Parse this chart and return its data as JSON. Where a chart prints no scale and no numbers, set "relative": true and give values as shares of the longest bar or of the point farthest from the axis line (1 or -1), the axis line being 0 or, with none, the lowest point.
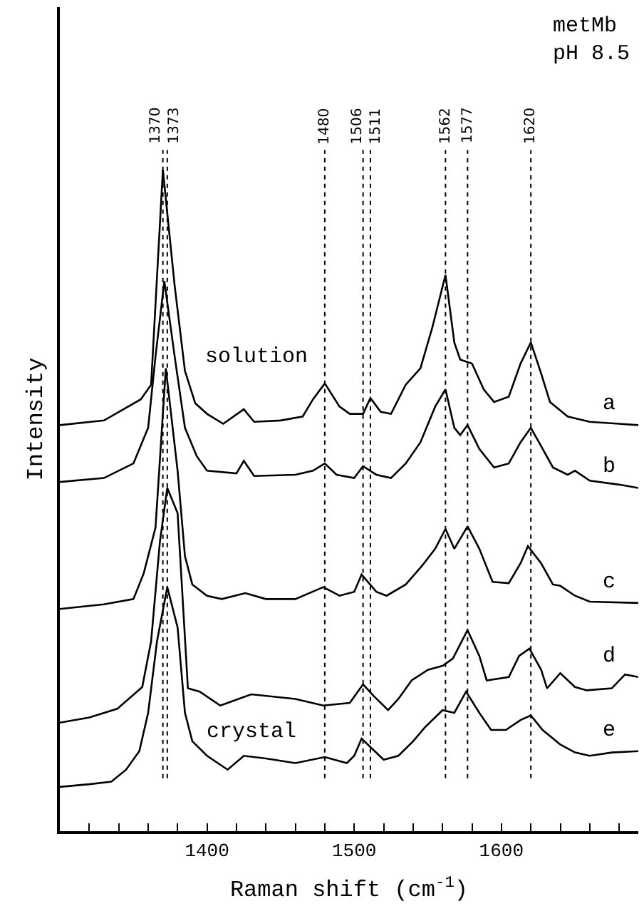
{
  "chart_data": {
    "type": "line",
    "relative": true,
    "xlabel": "Raman shift (cm$^{-1}$)",
    "ylabel": "Intensity",
    "xlim": [
      1300,
      1693
    ],
    "xticks": [
      {
        "value": 1320,
        "label": null
      },
      {
        "value": 1340,
        "label": null
      },
      {
        "value": 1360,
        "label": null
      },
      {
        "value": 1380,
        "label": null
      },
      1400,
      {
        "value": 1420,
        "label": null
      },
      {
        "value": 1440,
        "label": null
      },
      {
        "value": 1460,
        "label": null
      },
      {
        "value": 1480,
        "label": null
      },
      1500,
      {
        "value": 1520,
        "label": null
      },
      {
        "value": 1540,
        "label": null
      },
      {
        "value": 1560,
        "label": null
      },
      {
        "value": 1580,
        "label": null
      },
      1600,
      {
        "value": 1620,
        "label": null
      },
      {
        "value": 1640,
        "label": null
      },
      {
        "value": 1660,
        "label": null
      },
      {
        "value": 1680,
        "label": null
      }
    ],
    "tick_labels": "x",
    "legend": false,
    "marker": "none",
    "line_style": "solid",
    "series": [
      {
        "name": "a",
        "color": "#000000",
        "x": [
          1300,
          1330,
          1355,
          1362,
          1370,
          1378,
          1385,
          1392,
          1400,
          1411,
          1425,
          1432,
          1450,
          1465,
          1472,
          1480,
          1490,
          1497,
          1506,
          1511,
          1518,
          1525,
          1535,
          1545,
          1553,
          1562,
          1568,
          1572,
          1580,
          1588,
          1595,
          1605,
          1613,
          1620,
          1627,
          1633,
          1645,
          1660,
          1680,
          1693
        ],
        "values": [
          0.614,
          0.621,
          0.653,
          0.675,
          1,
          0.825,
          0.696,
          0.647,
          0.631,
          0.616,
          0.638,
          0.619,
          0.621,
          0.627,
          0.653,
          0.677,
          0.642,
          0.631,
          0.631,
          0.655,
          0.634,
          0.631,
          0.675,
          0.7,
          0.761,
          0.841,
          0.739,
          0.713,
          0.707,
          0.668,
          0.649,
          0.657,
          0.707,
          0.739,
          0.692,
          0.649,
          0.627,
          0.619,
          0.616,
          0.614
        ]
      },
      {
        "name": "b",
        "color": "#000000",
        "x": [
          1300,
          1330,
          1350,
          1360,
          1365,
          1371,
          1378,
          1385,
          1393,
          1400,
          1420,
          1425,
          1432,
          1460,
          1472,
          1480,
          1488,
          1500,
          1506,
          1515,
          1525,
          1535,
          1545,
          1555,
          1562,
          1568,
          1572,
          1577,
          1585,
          1595,
          1605,
          1613,
          1620,
          1628,
          1635,
          1645,
          1650,
          1660,
          1680,
          1693
        ],
        "values": [
          0.528,
          0.534,
          0.556,
          0.61,
          0.718,
          0.832,
          0.718,
          0.61,
          0.567,
          0.545,
          0.541,
          0.56,
          0.537,
          0.539,
          0.545,
          0.556,
          0.539,
          0.534,
          0.552,
          0.539,
          0.534,
          0.556,
          0.588,
          0.642,
          0.668,
          0.61,
          0.599,
          0.614,
          0.578,
          0.55,
          0.556,
          0.588,
          0.61,
          0.578,
          0.55,
          0.539,
          0.545,
          0.53,
          0.524,
          0.519
        ]
      },
      {
        "name": "c",
        "color": "#000000",
        "x": [
          1300,
          1330,
          1350,
          1357,
          1365,
          1372,
          1380,
          1385,
          1390,
          1400,
          1410,
          1426,
          1440,
          1460,
          1479,
          1490,
          1500,
          1505,
          1515,
          1522,
          1535,
          1546,
          1555,
          1562,
          1568,
          1577,
          1585,
          1594,
          1605,
          1613,
          1618,
          1627,
          1635,
          1640,
          1650,
          1660,
          1693
        ],
        "values": [
          0.336,
          0.343,
          0.351,
          0.39,
          0.459,
          0.7,
          0.545,
          0.416,
          0.373,
          0.356,
          0.351,
          0.36,
          0.351,
          0.351,
          0.369,
          0.356,
          0.362,
          0.388,
          0.362,
          0.356,
          0.373,
          0.401,
          0.427,
          0.457,
          0.427,
          0.461,
          0.427,
          0.377,
          0.375,
          0.405,
          0.431,
          0.405,
          0.373,
          0.371,
          0.356,
          0.347,
          0.345
        ]
      },
      {
        "name": "d",
        "color": "#000000",
        "x": [
          1300,
          1320,
          1339,
          1356,
          1362,
          1368,
          1373,
          1380,
          1384,
          1387,
          1395,
          1409,
          1430,
          1460,
          1479,
          1497,
          1506,
          1513,
          1523,
          1530,
          1539,
          1550,
          1560,
          1567,
          1577,
          1585,
          1590,
          1605,
          1612,
          1619,
          1627,
          1631,
          1640,
          1650,
          1658,
          1675,
          1684,
          1693
        ],
        "values": [
          0.164,
          0.172,
          0.185,
          0.218,
          0.287,
          0.438,
          0.519,
          0.481,
          0.33,
          0.216,
          0.211,
          0.19,
          0.207,
          0.2,
          0.19,
          0.194,
          0.222,
          0.205,
          0.183,
          0.2,
          0.228,
          0.244,
          0.25,
          0.261,
          0.304,
          0.265,
          0.228,
          0.233,
          0.265,
          0.276,
          0.244,
          0.216,
          0.239,
          0.218,
          0.213,
          0.216,
          0.237,
          0.233
        ]
      },
      {
        "name": "e",
        "color": "#000000",
        "x": [
          1300,
          1320,
          1335,
          1345,
          1354,
          1360,
          1366,
          1373,
          1380,
          1385,
          1390,
          1400,
          1414,
          1425,
          1440,
          1460,
          1480,
          1495,
          1500,
          1505,
          1512,
          1520,
          1530,
          1540,
          1548,
          1560,
          1568,
          1576,
          1585,
          1593,
          1603,
          1613,
          1620,
          1628,
          1640,
          1650,
          1660,
          1675,
          1693
        ],
        "values": [
          0.067,
          0.071,
          0.075,
          0.093,
          0.121,
          0.179,
          0.287,
          0.369,
          0.308,
          0.179,
          0.136,
          0.114,
          0.093,
          0.114,
          0.11,
          0.103,
          0.112,
          0.103,
          0.114,
          0.14,
          0.125,
          0.108,
          0.114,
          0.136,
          0.157,
          0.183,
          0.179,
          0.211,
          0.179,
          0.153,
          0.153,
          0.168,
          0.175,
          0.153,
          0.131,
          0.119,
          0.114,
          0.119,
          0.121
        ]
      }
    ],
    "ref_lines": [
      {
        "axis": "x",
        "value": 1370,
        "label": "1370",
        "line_style": "dotted"
      },
      {
        "axis": "x",
        "value": 1373,
        "label": "1373",
        "line_style": "dotted"
      },
      {
        "axis": "x",
        "value": 1480,
        "label": "1480",
        "line_style": "dotted"
      },
      {
        "axis": "x",
        "value": 1506,
        "label": "1506",
        "line_style": "dotted"
      },
      {
        "axis": "x",
        "value": 1511,
        "label": "1511",
        "line_style": "dotted"
      },
      {
        "axis": "x",
        "value": 1562,
        "label": "1562",
        "line_style": "dotted"
      },
      {
        "axis": "x",
        "value": 1577,
        "label": "1577",
        "line_style": "dotted"
      },
      {
        "axis": "x",
        "value": 1620,
        "label": "1620",
        "line_style": "dotted"
      }
    ],
    "annotations": [
      "solution",
      "crystal",
      "metMb\npH 8.5"
    ]
  }
}
